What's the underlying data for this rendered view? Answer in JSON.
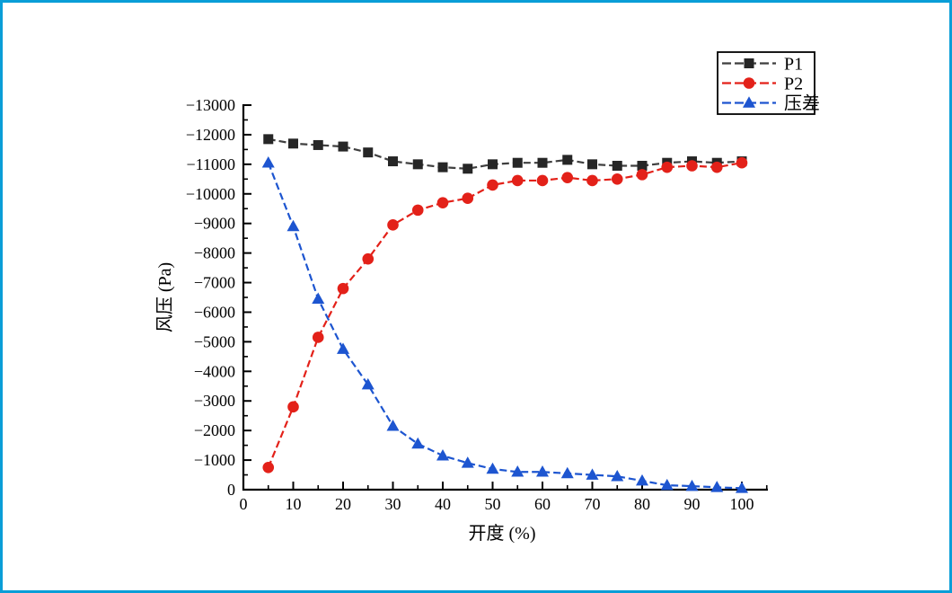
{
  "frame": {
    "border_color": "#0a9ed7",
    "background_color": "#ffffff"
  },
  "chart_data": {
    "type": "line",
    "title": "",
    "xlabel": "开度 (%)",
    "ylabel": "风压 (Pa)",
    "xlim": [
      0,
      105
    ],
    "ylim": [
      0,
      -13000
    ],
    "grid": false,
    "x_ticks": [
      0,
      10,
      20,
      30,
      40,
      50,
      60,
      70,
      80,
      90,
      100
    ],
    "x_minor_step": 5,
    "y_ticks": [
      0,
      -1000,
      -2000,
      -3000,
      -4000,
      -5000,
      -6000,
      -7000,
      -8000,
      -9000,
      -10000,
      -11000,
      -12000,
      -13000
    ],
    "y_minor_step": 500,
    "legend": {
      "position": "top-right",
      "entries": [
        "P1",
        "P2",
        "压差"
      ]
    },
    "x": [
      5,
      10,
      15,
      20,
      25,
      30,
      35,
      40,
      45,
      50,
      55,
      60,
      65,
      70,
      75,
      80,
      85,
      90,
      95,
      100
    ],
    "series": [
      {
        "name": "P1",
        "marker": "square",
        "marker_color": "#262626",
        "line_color": "#3f3f3f",
        "values": [
          -11850,
          -11700,
          -11650,
          -11600,
          -11400,
          -11100,
          -11000,
          -10900,
          -10850,
          -11000,
          -11050,
          -11050,
          -11150,
          -11000,
          -10950,
          -10950,
          -11050,
          -11100,
          -11050,
          -11100
        ]
      },
      {
        "name": "P2",
        "marker": "circle",
        "marker_color": "#e32119",
        "line_color": "#e32119",
        "values": [
          -750,
          -2800,
          -5150,
          -6800,
          -7800,
          -8950,
          -9450,
          -9700,
          -9850,
          -10300,
          -10450,
          -10450,
          -10550,
          -10450,
          -10500,
          -10650,
          -10900,
          -10950,
          -10900,
          -11050
        ]
      },
      {
        "name": "压差",
        "marker": "triangle",
        "marker_color": "#1d55d0",
        "line_color": "#1d55d0",
        "values": [
          -11050,
          -8900,
          -6450,
          -4750,
          -3550,
          -2150,
          -1550,
          -1150,
          -900,
          -700,
          -600,
          -600,
          -550,
          -500,
          -450,
          -300,
          -150,
          -120,
          -80,
          -50
        ]
      }
    ]
  }
}
